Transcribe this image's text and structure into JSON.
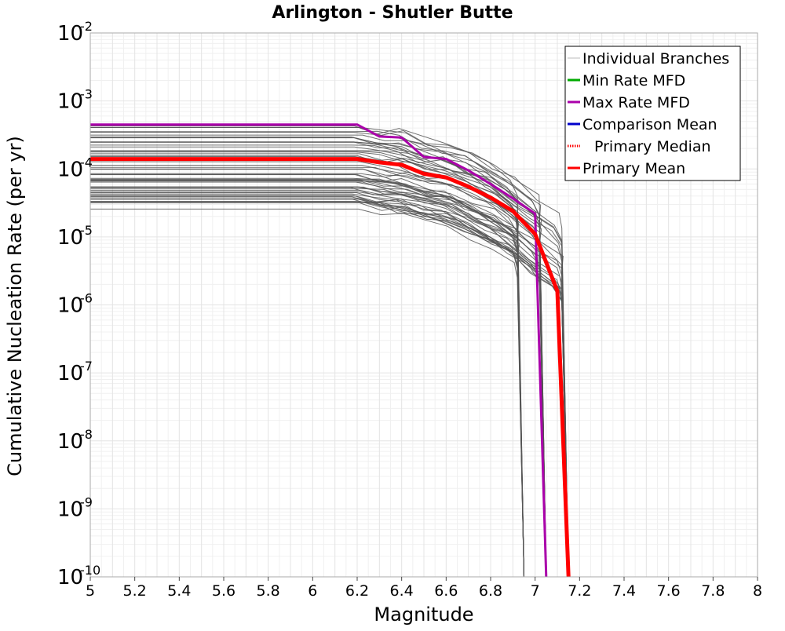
{
  "chart_data": {
    "type": "line",
    "title": "Arlington - Shutler Butte",
    "xlabel": "Magnitude",
    "ylabel": "Cumulative Nucleation Rate (per yr)",
    "xlim": [
      5,
      8
    ],
    "ylim": [
      1e-10,
      0.01
    ],
    "yscale": "log",
    "grid": true,
    "legend_position": "top-right",
    "x_ticks": [
      "5",
      "5.2",
      "5.4",
      "5.6",
      "5.8",
      "6",
      "6.2",
      "6.4",
      "6.6",
      "6.8",
      "7",
      "7.2",
      "7.4",
      "7.6",
      "7.8",
      "8"
    ],
    "y_ticks": [
      {
        "base": "10",
        "exp": "-2"
      },
      {
        "base": "10",
        "exp": "-3"
      },
      {
        "base": "10",
        "exp": "-4"
      },
      {
        "base": "10",
        "exp": "-5"
      },
      {
        "base": "10",
        "exp": "-6"
      },
      {
        "base": "10",
        "exp": "-7"
      },
      {
        "base": "10",
        "exp": "-8"
      },
      {
        "base": "10",
        "exp": "-9"
      },
      {
        "base": "10",
        "exp": "-10"
      }
    ],
    "legend": [
      {
        "label": "Individual Branches",
        "color": "#bbbbbb",
        "style": "solid"
      },
      {
        "label": "Min Rate MFD",
        "color": "#00aa00",
        "style": "solid"
      },
      {
        "label": "Max Rate MFD",
        "color": "#aa00aa",
        "style": "solid"
      },
      {
        "label": "Comparison Mean",
        "color": "#0000cc",
        "style": "solid"
      },
      {
        "label": "Primary Median",
        "color": "#ff0000",
        "style": "dotted"
      },
      {
        "label": "Primary Mean",
        "color": "#ff0000",
        "style": "solid"
      }
    ],
    "individual_branches": {
      "color": "#555555",
      "count": 60,
      "plateau_range": [
        2.5e-05,
        0.00045
      ],
      "max_magnitudes": [
        6.95,
        7.05,
        7.15
      ]
    },
    "series": [
      {
        "name": "Max Rate MFD",
        "color": "#aa00aa",
        "x": [
          5.0,
          6.2,
          6.3,
          6.4,
          6.5,
          6.6,
          6.7,
          6.8,
          6.9,
          7.0,
          7.05
        ],
        "y": [
          0.00045,
          0.00045,
          0.0003,
          0.00029,
          0.00015,
          0.00014,
          9.5e-05,
          6e-05,
          3.7e-05,
          2.2e-05,
          1e-10
        ]
      },
      {
        "name": "Primary Mean",
        "color": "#ff0000",
        "x": [
          5.0,
          6.2,
          6.3,
          6.4,
          6.5,
          6.6,
          6.7,
          6.8,
          6.9,
          7.0,
          7.1,
          7.15
        ],
        "y": [
          0.00014,
          0.00014,
          0.000125,
          0.000115,
          8.5e-05,
          7.5e-05,
          5.5e-05,
          3.8e-05,
          2.4e-05,
          1.1e-05,
          1.6e-06,
          1e-10
        ]
      }
    ]
  }
}
